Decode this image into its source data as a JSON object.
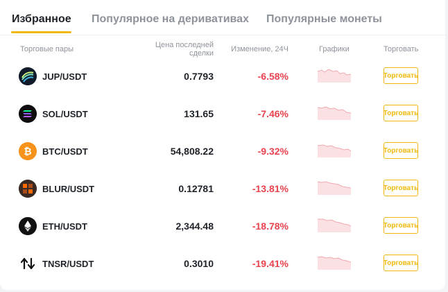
{
  "tabs": [
    {
      "label": "Избранное",
      "active": true
    },
    {
      "label": "Популярное на деривативах",
      "active": false
    },
    {
      "label": "Популярные монеты",
      "active": false
    }
  ],
  "columns": {
    "pair": "Торговые пары",
    "price_line1": "Цена последней",
    "price_line2": "сделки",
    "change": "Изменение, 24Ч",
    "charts": "Графики",
    "trade": "Торговать"
  },
  "rows": [
    {
      "pair": "JUP/USDT",
      "price": "0.7793",
      "change": "-6.58%",
      "trade_label": "Торговать",
      "icon": "jupiter-icon"
    },
    {
      "pair": "SOL/USDT",
      "price": "131.65",
      "change": "-7.46%",
      "trade_label": "Торговать",
      "icon": "solana-icon"
    },
    {
      "pair": "BTC/USDT",
      "price": "54,808.22",
      "change": "-9.32%",
      "trade_label": "Торговать",
      "icon": "bitcoin-icon"
    },
    {
      "pair": "BLUR/USDT",
      "price": "0.12781",
      "change": "-13.81%",
      "trade_label": "Торговать",
      "icon": "blur-icon"
    },
    {
      "pair": "ETH/USDT",
      "price": "2,344.48",
      "change": "-18.78%",
      "trade_label": "Торговать",
      "icon": "ethereum-icon"
    },
    {
      "pair": "TNSR/USDT",
      "price": "0.3010",
      "change": "-19.41%",
      "trade_label": "Торговать",
      "icon": "tensor-icon"
    }
  ],
  "colors": {
    "accent": "#f0b90b",
    "negative": "#e8434e",
    "text": "#1e2329",
    "muted": "#8e939b"
  }
}
